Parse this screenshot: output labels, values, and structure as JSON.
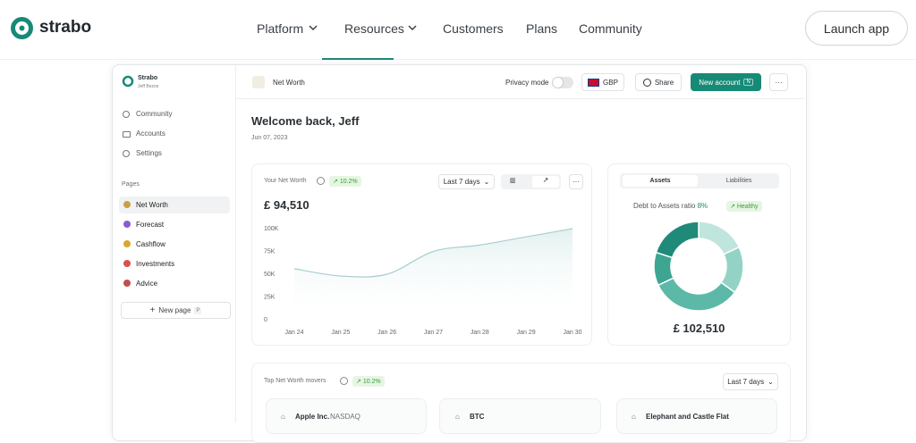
{
  "nav": {
    "logo": "strabo",
    "links": [
      "Platform",
      "Resources",
      "Customers",
      "Plans",
      "Community"
    ],
    "cta": "Launch app"
  },
  "sidebar": {
    "brand": "Strabo",
    "user": "Jeff Bezos",
    "menu": [
      "Community",
      "Accounts",
      "Settings"
    ],
    "section": "Pages",
    "pages": [
      "Net Worth",
      "Forecast",
      "Cashflow",
      "Investments",
      "Advice"
    ],
    "new_page": "New page",
    "shortcut": "P"
  },
  "topbar": {
    "page": "Net Worth",
    "privacy": "Privacy mode",
    "currency": "GBP",
    "share": "Share",
    "new_account": "New account",
    "new_account_key": "N"
  },
  "welcome": {
    "title": "Welcome back, Jeff",
    "date": "Jun 07, 2023"
  },
  "net_worth_card": {
    "label": "Your Net Worth",
    "change": "10.2%",
    "period": "Last 7 days",
    "amount": "£ 94,510",
    "chart": {
      "type": "line",
      "categories": [
        "Jan 24",
        "Jan 25",
        "Jan 26",
        "Jan 27",
        "Jan 28",
        "Jan 29",
        "Jan 30"
      ],
      "values": [
        56000,
        48000,
        50000,
        75000,
        82000,
        91000,
        100000
      ],
      "color": "#a9cfd0",
      "ylim": [
        0,
        100000
      ],
      "yticks": [
        0,
        {
          "value": 25000,
          "label": "25K"
        },
        {
          "value": 50000,
          "label": "50K"
        },
        {
          "value": 75000,
          "label": "75K"
        },
        {
          "value": 100000,
          "label": "100K"
        }
      ]
    }
  },
  "assets_card": {
    "tabs": [
      "Assets",
      "Liabilities"
    ],
    "ratio_label": "Debt to Assets ratio",
    "ratio": "8%",
    "status": "Healthy",
    "amount": "£ 102,510",
    "chart": {
      "type": "donut",
      "values": [
        18,
        17,
        33,
        12,
        20
      ],
      "colors": [
        "#bfe5dd",
        "#93d3c6",
        "#5cb9a8",
        "#3ea593",
        "#1f8a79"
      ]
    }
  },
  "movers_card": {
    "label": "Top Net Worth movers",
    "change": "10.2%",
    "period": "Last 7 days",
    "items": [
      {
        "name": "Apple Inc.",
        "exchange": "NASDAQ"
      },
      {
        "name": "BTC"
      },
      {
        "name": "Elephant and Castle Flat"
      }
    ]
  }
}
